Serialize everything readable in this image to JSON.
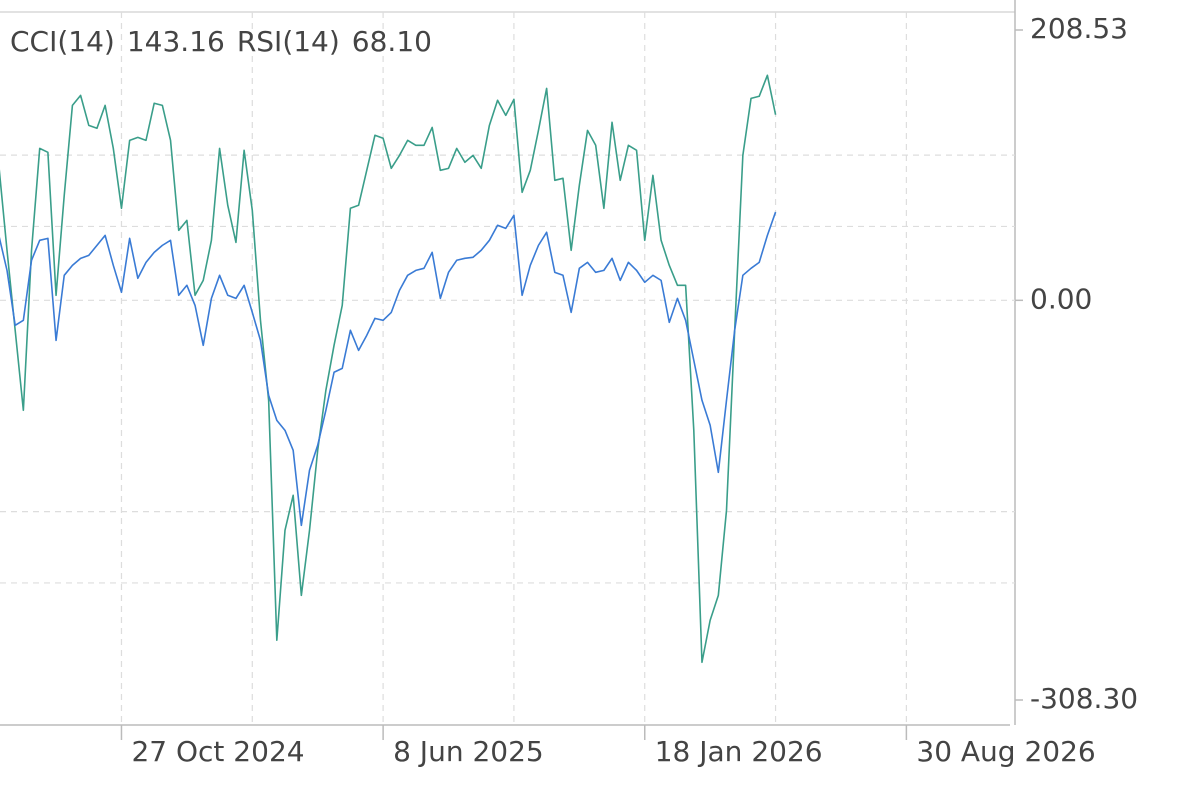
{
  "chart_data": {
    "type": "line",
    "x": [
      "2024-07-14",
      "2024-07-21",
      "2024-07-28",
      "2024-08-04",
      "2024-08-11",
      "2024-08-18",
      "2024-08-25",
      "2024-09-01",
      "2024-09-08",
      "2024-09-15",
      "2024-09-22",
      "2024-09-29",
      "2024-10-06",
      "2024-10-13",
      "2024-10-20",
      "2024-10-27",
      "2024-11-03",
      "2024-11-10",
      "2024-11-17",
      "2024-11-24",
      "2024-12-01",
      "2024-12-08",
      "2024-12-15",
      "2024-12-22",
      "2024-12-29",
      "2025-01-05",
      "2025-01-12",
      "2025-01-19",
      "2025-01-26",
      "2025-02-02",
      "2025-02-09",
      "2025-02-16",
      "2025-02-23",
      "2025-03-02",
      "2025-03-09",
      "2025-03-16",
      "2025-03-23",
      "2025-03-30",
      "2025-04-06",
      "2025-04-13",
      "2025-04-20",
      "2025-04-27",
      "2025-05-04",
      "2025-05-11",
      "2025-05-18",
      "2025-05-25",
      "2025-06-01",
      "2025-06-08",
      "2025-06-15",
      "2025-06-22",
      "2025-06-29",
      "2025-07-06",
      "2025-07-13",
      "2025-07-20",
      "2025-07-27",
      "2025-08-03",
      "2025-08-10",
      "2025-08-17",
      "2025-08-24",
      "2025-08-31",
      "2025-09-07",
      "2025-09-14",
      "2025-09-21",
      "2025-09-28",
      "2025-10-05",
      "2025-10-12",
      "2025-10-19",
      "2025-10-26",
      "2025-11-02",
      "2025-11-09",
      "2025-11-16",
      "2025-11-23",
      "2025-11-30",
      "2025-12-07",
      "2025-12-14",
      "2025-12-21",
      "2025-12-28",
      "2026-01-04",
      "2026-01-11",
      "2026-01-18",
      "2026-01-25",
      "2026-02-01",
      "2026-02-08",
      "2026-02-15",
      "2026-02-22",
      "2026-03-01",
      "2026-03-08",
      "2026-03-15",
      "2026-03-22",
      "2026-03-29",
      "2026-04-05",
      "2026-04-12",
      "2026-04-19",
      "2026-04-26",
      "2026-05-03",
      "2026-05-10"
    ],
    "series": [
      {
        "name": "CCI(14)",
        "readout": "143.16",
        "color": "#3a9e8a",
        "values": [
          104.1,
          38.6,
          -23.1,
          -84.8,
          38.6,
          117.2,
          114.2,
          3.9,
          81.0,
          150.4,
          158.1,
          135.0,
          132.7,
          150.4,
          117.2,
          71.0,
          123.4,
          125.7,
          123.4,
          152.0,
          150.4,
          123.4,
          54.0,
          61.7,
          3.9,
          15.4,
          46.3,
          117.2,
          73.3,
          44.7,
          115.7,
          69.4,
          -15.4,
          -77.1,
          -262.2,
          -177.4,
          -150.4,
          -227.6,
          -177.4,
          -115.7,
          -69.4,
          -34.7,
          -3.9,
          71.0,
          73.3,
          100.3,
          127.3,
          125.0,
          101.8,
          111.8,
          123.4,
          119.6,
          119.6,
          133.4,
          100.3,
          101.8,
          117.2,
          106.5,
          111.8,
          101.8,
          135.0,
          154.3,
          142.7,
          155.0,
          83.3,
          100.3,
          131.1,
          163.5,
          92.6,
          94.1,
          38.6,
          88.7,
          131.1,
          119.6,
          71.0,
          137.3,
          92.6,
          119.6,
          115.7,
          46.3,
          96.4,
          46.3,
          27.0,
          11.6,
          11.6,
          -100.3,
          -279.2,
          -246.8,
          -227.6,
          -162.0,
          -23.1,
          111.8,
          155.8,
          157.4,
          173.6,
          143.16
        ]
      },
      {
        "name": "RSI(14)",
        "readout": "68.10",
        "color": "#3a7bd5",
        "values": [
          50.1,
          23.1,
          -19.3,
          -15.4,
          30.9,
          46.3,
          47.8,
          -30.9,
          19.3,
          27.0,
          32.4,
          34.7,
          42.4,
          50.1,
          27.0,
          6.2,
          47.8,
          17.0,
          29.3,
          37.0,
          42.4,
          46.3,
          3.9,
          11.6,
          -3.9,
          -34.7,
          1.5,
          19.3,
          3.9,
          1.5,
          11.6,
          -9.3,
          -30.9,
          -73.3,
          -92.6,
          -100.3,
          -115.7,
          -173.6,
          -131.1,
          -111.8,
          -84.8,
          -55.5,
          -52.5,
          -23.1,
          -38.6,
          -27.0,
          -13.9,
          -15.4,
          -9.3,
          7.7,
          19.3,
          23.1,
          24.7,
          37.0,
          1.5,
          21.6,
          30.9,
          32.4,
          33.2,
          38.6,
          46.3,
          57.9,
          55.5,
          65.6,
          3.9,
          27.0,
          42.4,
          52.5,
          21.6,
          19.3,
          -9.3,
          24.7,
          29.3,
          21.6,
          23.1,
          32.4,
          15.4,
          29.3,
          23.1,
          13.9,
          19.3,
          15.4,
          -17.0,
          1.5,
          -15.4,
          -46.3,
          -77.1,
          -96.4,
          -132.7,
          -77.1,
          -23.1,
          19.3,
          24.7,
          29.3,
          50.1,
          68.1
        ]
      }
    ],
    "xlim": [
      "2024-07-15",
      "2026-12-01"
    ],
    "xticks": [
      {
        "value": "2024-10-27",
        "label": "27 Oct 2024"
      },
      {
        "value": "2025-06-08",
        "label": "8 Jun 2025"
      },
      {
        "value": "2026-01-18",
        "label": "18 Jan 2026"
      },
      {
        "value": "2026-08-30",
        "label": "30 Aug 2026"
      }
    ],
    "xgrid": [
      "2024-10-27",
      "2025-02-16",
      "2025-06-08",
      "2025-09-28",
      "2026-01-18",
      "2026-05-10",
      "2026-08-30"
    ],
    "ylim": [
      -308.3,
      208.53
    ],
    "yticks": [
      208.53,
      {
        "value": 0,
        "label": "0.00"
      },
      {
        "value": -308.3,
        "label": "-308.30"
      }
    ],
    "ygrid": [
      112,
      57,
      0,
      -163,
      -218
    ],
    "grid": true
  }
}
